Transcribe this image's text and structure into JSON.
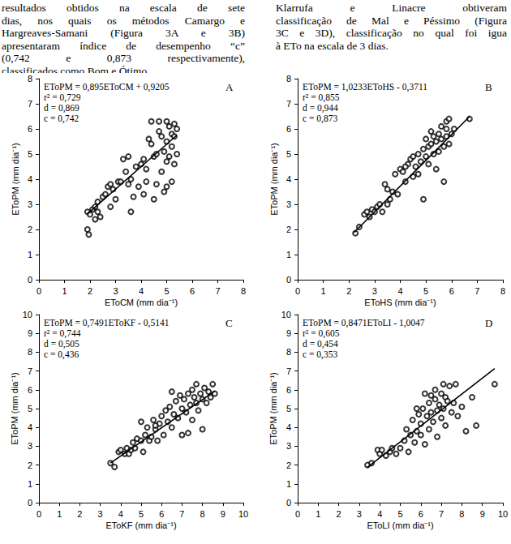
{
  "page_text": {
    "left": [
      "resultados obtidos na escala de sete",
      "dias, nos quais os métodos Camargo e",
      "Hargreaves-Samani (Figura 3A e 3B)",
      "apresentaram índice de desempenho “c”",
      "(0,742 e 0,873 respectivamente),",
      "classificados como Bom e Ótimo."
    ],
    "right": [
      "Klarrufa e Linacre obtiveram",
      "classificação de Mal e Péssimo (Figura",
      "3C e 3D), classificação no qual foi igua",
      "à ETo na escala de 3 dias."
    ]
  },
  "chart_data": [
    {
      "type": "scatter",
      "panel": "A",
      "annotations": [
        "EToPM = 0,895EToCM + 0,9205",
        "r² = 0,729",
        "d = 0,869",
        "c = 0,742"
      ],
      "x_label": "EToCM (mm dia⁻¹)",
      "y_label": "EToPM (mm dia⁻¹)",
      "xlim": [
        0,
        8
      ],
      "ylim": [
        0,
        8
      ],
      "xticks": [
        0,
        1,
        2,
        3,
        4,
        5,
        6,
        7,
        8
      ],
      "yticks": [
        0,
        1,
        2,
        3,
        4,
        5,
        6,
        7,
        8
      ],
      "grid": false,
      "series": [
        {
          "type": "scatter",
          "marker": "circle",
          "color": "#000000",
          "points": [
            [
              1.9,
              2.7
            ],
            [
              1.9,
              2.0
            ],
            [
              1.95,
              1.8
            ],
            [
              2.0,
              2.6
            ],
            [
              2.1,
              2.8
            ],
            [
              2.2,
              2.4
            ],
            [
              2.3,
              2.7
            ],
            [
              2.3,
              3.1
            ],
            [
              2.4,
              2.5
            ],
            [
              2.5,
              3.3
            ],
            [
              2.6,
              3.4
            ],
            [
              2.7,
              3.7
            ],
            [
              2.8,
              2.9
            ],
            [
              2.8,
              3.8
            ],
            [
              2.9,
              3.6
            ],
            [
              3.0,
              3.2
            ],
            [
              3.1,
              3.9
            ],
            [
              3.2,
              3.9
            ],
            [
              3.3,
              4.8
            ],
            [
              3.4,
              4.3
            ],
            [
              3.5,
              3.8
            ],
            [
              3.5,
              4.9
            ],
            [
              3.6,
              4.0
            ],
            [
              3.7,
              3.3
            ],
            [
              3.8,
              4.5
            ],
            [
              3.9,
              3.7
            ],
            [
              4.0,
              4.6
            ],
            [
              4.1,
              4.8
            ],
            [
              4.2,
              3.9
            ],
            [
              4.2,
              4.4
            ],
            [
              4.3,
              5.6
            ],
            [
              4.4,
              5.4
            ],
            [
              4.5,
              3.2
            ],
            [
              4.5,
              4.9
            ],
            [
              4.6,
              5.0
            ],
            [
              4.6,
              3.8
            ],
            [
              4.7,
              5.9
            ],
            [
              4.7,
              6.3
            ],
            [
              4.8,
              4.3
            ],
            [
              4.8,
              5.7
            ],
            [
              4.9,
              5.1
            ],
            [
              4.9,
              3.5
            ],
            [
              5.0,
              5.5
            ],
            [
              5.0,
              6.3
            ],
            [
              5.0,
              4.7
            ],
            [
              5.1,
              6.1
            ],
            [
              5.1,
              4.9
            ],
            [
              5.2,
              5.8
            ],
            [
              5.2,
              5.3
            ],
            [
              5.2,
              3.9
            ],
            [
              5.3,
              6.2
            ],
            [
              5.3,
              4.6
            ],
            [
              5.3,
              5.7
            ],
            [
              5.4,
              5.0
            ],
            [
              5.4,
              6.0
            ],
            [
              5.0,
              3.7
            ],
            [
              4.4,
              6.3
            ],
            [
              4.1,
              3.4
            ],
            [
              3.6,
              2.7
            ],
            [
              2.2,
              2.9
            ]
          ]
        },
        {
          "type": "line",
          "line_style": "solid",
          "color": "#000000",
          "x": [
            1.9,
            5.4
          ],
          "values": [
            2.62,
            5.75
          ]
        }
      ]
    },
    {
      "type": "scatter",
      "panel": "B",
      "annotations": [
        "EToPM = 1,0233EToHS - 0,3711",
        "r² = 0,855",
        "d = 0,944",
        "c = 0,873"
      ],
      "x_label": "EToHS (mm dia⁻¹)",
      "y_label": "EToPM (mm dia⁻¹)",
      "xlim": [
        0,
        8
      ],
      "ylim": [
        0,
        8
      ],
      "xticks": [
        0,
        1,
        2,
        3,
        4,
        5,
        6,
        7,
        8
      ],
      "yticks": [
        0,
        1,
        2,
        3,
        4,
        5,
        6,
        7,
        8
      ],
      "grid": false,
      "series": [
        {
          "type": "scatter",
          "marker": "circle",
          "color": "#000000",
          "points": [
            [
              2.25,
              1.85
            ],
            [
              2.4,
              2.1
            ],
            [
              2.6,
              2.6
            ],
            [
              2.7,
              2.7
            ],
            [
              2.8,
              2.5
            ],
            [
              2.9,
              2.8
            ],
            [
              3.0,
              2.7
            ],
            [
              3.1,
              2.9
            ],
            [
              3.2,
              3.0
            ],
            [
              3.3,
              2.7
            ],
            [
              3.4,
              3.8
            ],
            [
              3.5,
              3.6
            ],
            [
              3.6,
              3.2
            ],
            [
              3.7,
              3.5
            ],
            [
              3.8,
              4.2
            ],
            [
              3.9,
              3.4
            ],
            [
              4.0,
              4.4
            ],
            [
              4.1,
              4.3
            ],
            [
              4.2,
              3.9
            ],
            [
              4.3,
              4.6
            ],
            [
              4.4,
              4.8
            ],
            [
              4.5,
              4.1
            ],
            [
              4.5,
              4.9
            ],
            [
              4.6,
              4.5
            ],
            [
              4.7,
              4.2
            ],
            [
              4.7,
              5.0
            ],
            [
              4.8,
              4.7
            ],
            [
              4.9,
              5.2
            ],
            [
              4.9,
              3.2
            ],
            [
              5.0,
              4.9
            ],
            [
              5.0,
              5.6
            ],
            [
              5.1,
              4.6
            ],
            [
              5.1,
              5.3
            ],
            [
              5.2,
              5.4
            ],
            [
              5.3,
              5.0
            ],
            [
              5.3,
              5.7
            ],
            [
              5.4,
              4.4
            ],
            [
              5.4,
              5.5
            ],
            [
              5.5,
              5.1
            ],
            [
              5.5,
              5.8
            ],
            [
              5.6,
              5.6
            ],
            [
              5.6,
              6.1
            ],
            [
              5.7,
              5.3
            ],
            [
              5.7,
              3.9
            ],
            [
              5.8,
              6.3
            ],
            [
              5.8,
              5.7
            ],
            [
              5.8,
              6.0
            ],
            [
              5.9,
              5.4
            ],
            [
              5.9,
              6.4
            ],
            [
              6.0,
              5.8
            ],
            [
              6.1,
              6.0
            ],
            [
              6.7,
              6.4
            ],
            [
              4.2,
              4.5
            ],
            [
              3.5,
              3.0
            ],
            [
              5.2,
              5.9
            ]
          ]
        },
        {
          "type": "line",
          "line_style": "solid",
          "color": "#000000",
          "x": [
            2.2,
            6.7
          ],
          "values": [
            1.88,
            6.49
          ]
        }
      ]
    },
    {
      "type": "scatter",
      "panel": "C",
      "annotations": [
        "EToPM = 0,7491EToKF - 0,5141",
        "r² = 0,744",
        "d = 0,505",
        "c = 0,436"
      ],
      "x_label": "EToKF (mm dia⁻¹)",
      "y_label": "EToPM (mm dia⁻¹)",
      "xlim": [
        0,
        10
      ],
      "ylim": [
        0,
        10
      ],
      "xticks": [
        0,
        1,
        2,
        3,
        4,
        5,
        6,
        7,
        8,
        9,
        10
      ],
      "yticks": [
        0,
        1,
        2,
        3,
        4,
        5,
        6,
        7,
        8,
        9,
        10
      ],
      "grid": false,
      "series": [
        {
          "type": "scatter",
          "marker": "circle",
          "color": "#000000",
          "points": [
            [
              3.5,
              2.1
            ],
            [
              3.7,
              1.9
            ],
            [
              3.9,
              2.7
            ],
            [
              4.0,
              2.8
            ],
            [
              4.2,
              2.6
            ],
            [
              4.3,
              2.9
            ],
            [
              4.4,
              2.6
            ],
            [
              4.5,
              2.8
            ],
            [
              4.6,
              3.2
            ],
            [
              4.7,
              2.9
            ],
            [
              4.8,
              3.4
            ],
            [
              5.0,
              3.3
            ],
            [
              5.0,
              4.3
            ],
            [
              5.1,
              2.7
            ],
            [
              5.2,
              3.6
            ],
            [
              5.3,
              4.0
            ],
            [
              5.4,
              3.3
            ],
            [
              5.5,
              3.5
            ],
            [
              5.6,
              4.4
            ],
            [
              5.7,
              3.9
            ],
            [
              5.8,
              3.3
            ],
            [
              5.9,
              4.2
            ],
            [
              6.0,
              4.6
            ],
            [
              6.1,
              3.6
            ],
            [
              6.2,
              4.9
            ],
            [
              6.3,
              4.3
            ],
            [
              6.4,
              5.1
            ],
            [
              6.5,
              4.0
            ],
            [
              6.6,
              4.7
            ],
            [
              6.7,
              5.4
            ],
            [
              6.8,
              4.5
            ],
            [
              6.9,
              5.7
            ],
            [
              7.0,
              5.0
            ],
            [
              7.0,
              3.6
            ],
            [
              7.1,
              5.5
            ],
            [
              7.2,
              4.8
            ],
            [
              7.3,
              5.8
            ],
            [
              7.3,
              3.7
            ],
            [
              7.4,
              5.2
            ],
            [
              7.5,
              6.0
            ],
            [
              7.5,
              4.4
            ],
            [
              7.6,
              5.6
            ],
            [
              7.7,
              5.3
            ],
            [
              7.7,
              6.3
            ],
            [
              7.8,
              4.9
            ],
            [
              7.9,
              5.8
            ],
            [
              8.0,
              5.5
            ],
            [
              8.0,
              3.9
            ],
            [
              8.1,
              6.1
            ],
            [
              8.2,
              5.3
            ],
            [
              8.3,
              5.9
            ],
            [
              8.4,
              5.6
            ],
            [
              8.5,
              6.3
            ],
            [
              8.6,
              5.8
            ],
            [
              6.5,
              5.9
            ],
            [
              5.7,
              4.1
            ]
          ]
        },
        {
          "type": "line",
          "line_style": "solid",
          "color": "#000000",
          "x": [
            3.5,
            8.6
          ],
          "values": [
            2.11,
            5.93
          ]
        }
      ]
    },
    {
      "type": "scatter",
      "panel": "D",
      "annotations": [
        "EToPM = 0,8471EToLI - 1,0047",
        "r² = 0,605",
        "d = 0,454",
        "c = 0,353"
      ],
      "x_label": "EToLI (mm dia⁻¹)",
      "y_label": "EToPM (mm dia⁻¹)",
      "xlim": [
        0,
        10
      ],
      "ylim": [
        0,
        10
      ],
      "xticks": [
        0,
        1,
        2,
        3,
        4,
        5,
        6,
        7,
        8,
        9,
        10
      ],
      "yticks": [
        0,
        1,
        2,
        3,
        4,
        5,
        6,
        7,
        8,
        9,
        10
      ],
      "grid": false,
      "series": [
        {
          "type": "scatter",
          "marker": "circle",
          "color": "#000000",
          "points": [
            [
              3.4,
              2.0
            ],
            [
              3.6,
              2.1
            ],
            [
              3.9,
              2.8
            ],
            [
              4.0,
              2.6
            ],
            [
              4.1,
              2.8
            ],
            [
              4.3,
              2.5
            ],
            [
              4.5,
              2.7
            ],
            [
              4.6,
              2.9
            ],
            [
              4.8,
              2.6
            ],
            [
              5.0,
              2.9
            ],
            [
              5.2,
              3.3
            ],
            [
              5.3,
              3.9
            ],
            [
              5.4,
              2.7
            ],
            [
              5.5,
              3.6
            ],
            [
              5.6,
              4.4
            ],
            [
              5.7,
              3.2
            ],
            [
              5.8,
              3.8
            ],
            [
              5.9,
              4.7
            ],
            [
              6.0,
              3.6
            ],
            [
              6.0,
              4.2
            ],
            [
              6.1,
              5.0
            ],
            [
              6.2,
              3.1
            ],
            [
              6.3,
              4.6
            ],
            [
              6.4,
              5.3
            ],
            [
              6.4,
              3.9
            ],
            [
              6.5,
              4.8
            ],
            [
              6.5,
              5.7
            ],
            [
              6.6,
              4.3
            ],
            [
              6.7,
              5.5
            ],
            [
              6.7,
              6.0
            ],
            [
              6.8,
              4.9
            ],
            [
              6.8,
              3.5
            ],
            [
              6.9,
              5.2
            ],
            [
              7.0,
              5.8
            ],
            [
              7.0,
              4.5
            ],
            [
              7.1,
              6.3
            ],
            [
              7.1,
              5.0
            ],
            [
              7.2,
              5.6
            ],
            [
              7.2,
              4.1
            ],
            [
              7.3,
              5.4
            ],
            [
              7.4,
              6.2
            ],
            [
              7.5,
              4.8
            ],
            [
              7.6,
              5.3
            ],
            [
              7.7,
              6.3
            ],
            [
              7.8,
              4.6
            ],
            [
              8.0,
              5.1
            ],
            [
              8.2,
              3.8
            ],
            [
              8.5,
              5.6
            ],
            [
              8.7,
              4.1
            ],
            [
              9.6,
              6.3
            ],
            [
              6.2,
              5.8
            ],
            [
              5.8,
              5.0
            ]
          ]
        },
        {
          "type": "line",
          "line_style": "solid",
          "color": "#000000",
          "x": [
            3.4,
            9.6
          ],
          "values": [
            1.88,
            7.13
          ]
        }
      ]
    }
  ]
}
